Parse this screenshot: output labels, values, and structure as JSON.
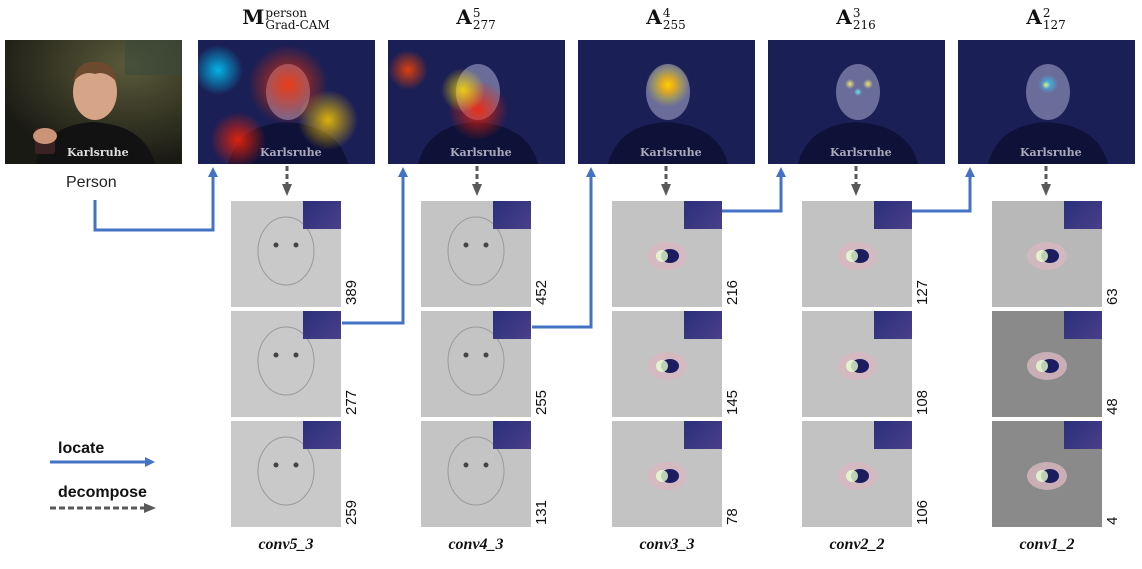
{
  "input_label": "Person",
  "columns": [
    {
      "title_base": "M",
      "title_sup": "person",
      "title_sub": "Grad-CAM",
      "layer": "conv5_3",
      "channels": [
        "389",
        "277",
        "259"
      ]
    },
    {
      "title_base": "A",
      "title_sup": "5",
      "title_sub": "277",
      "layer": "conv4_3",
      "channels": [
        "452",
        "255",
        "131"
      ]
    },
    {
      "title_base": "A",
      "title_sup": "4",
      "title_sub": "255",
      "layer": "conv3_3",
      "channels": [
        "216",
        "145",
        "78"
      ]
    },
    {
      "title_base": "A",
      "title_sup": "3",
      "title_sub": "216",
      "layer": "conv2_2",
      "channels": [
        "127",
        "108",
        "106"
      ]
    },
    {
      "title_base": "A",
      "title_sup": "2",
      "title_sub": "127",
      "layer": "conv1_2",
      "channels": [
        "63",
        "48",
        "4"
      ]
    }
  ],
  "legend": {
    "locate": "locate",
    "decompose": "decompose"
  },
  "colors": {
    "locate_arrow": "#4472c4",
    "decompose_arrow": "#595959"
  }
}
